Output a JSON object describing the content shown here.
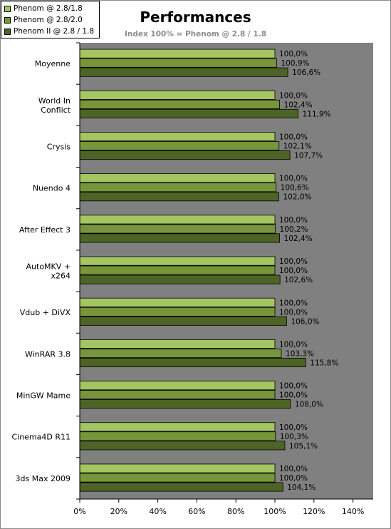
{
  "chart_data": {
    "type": "bar",
    "orientation": "horizontal",
    "title": "Performances",
    "subtitle": "Index 100% = Phenom @ 2.8 / 1.8",
    "categories": [
      "Moyenne",
      "World In Conflict",
      "Crysis",
      "Nuendo 4",
      "After Effect 3",
      "AutoMKV + x264",
      "Vdub + DiVX",
      "WinRAR 3.8",
      "MinGW Mame",
      "Cinema4D R11",
      "3ds Max 2009"
    ],
    "category_lines": [
      [
        "Moyenne"
      ],
      [
        "World In",
        "Conflict"
      ],
      [
        "Crysis"
      ],
      [
        "Nuendo 4"
      ],
      [
        "After Effect 3"
      ],
      [
        "AutoMKV +",
        "x264"
      ],
      [
        "Vdub + DiVX"
      ],
      [
        "WinRAR 3.8"
      ],
      [
        "MinGW Mame"
      ],
      [
        "Cinema4D R11"
      ],
      [
        "3ds Max 2009"
      ]
    ],
    "series": [
      {
        "name": "Phenom @ 2.8/1.8",
        "color": "#a3c562",
        "values": [
          100.0,
          100.0,
          100.0,
          100.0,
          100.0,
          100.0,
          100.0,
          100.0,
          100.0,
          100.0,
          100.0
        ],
        "labels": [
          "100,0%",
          "100,0%",
          "100,0%",
          "100,0%",
          "100,0%",
          "100,0%",
          "100,0%",
          "100,0%",
          "100,0%",
          "100,0%",
          "100,0%"
        ]
      },
      {
        "name": "Phenom @ 2.8/2.0",
        "color": "#77953a",
        "values": [
          100.9,
          102.4,
          102.1,
          100.6,
          100.2,
          100.0,
          100.0,
          103.3,
          100.0,
          100.3,
          100.0
        ],
        "labels": [
          "100,9%",
          "102,4%",
          "102,1%",
          "100,6%",
          "100,2%",
          "100,0%",
          "100,0%",
          "103,3%",
          "100,0%",
          "100,3%",
          "100,0%"
        ]
      },
      {
        "name": "Phenom II @ 2.8 / 1.8",
        "color": "#4d6426",
        "values": [
          106.6,
          111.9,
          107.7,
          102.0,
          102.4,
          102.6,
          106.0,
          115.8,
          108.0,
          105.1,
          104.1
        ],
        "labels": [
          "106,6%",
          "111,9%",
          "107,7%",
          "102,0%",
          "102,4%",
          "102,6%",
          "106,0%",
          "115,8%",
          "108,0%",
          "105,1%",
          "104,1%"
        ]
      }
    ],
    "xlim": [
      0,
      150
    ],
    "xticks": [
      0,
      20,
      40,
      60,
      80,
      100,
      120,
      140
    ],
    "xtick_labels": [
      "0%",
      "20%",
      "40%",
      "60%",
      "80%",
      "100%",
      "120%",
      "140%"
    ],
    "plot_background": "#808080",
    "grid": false,
    "legend_position": "top-left"
  }
}
